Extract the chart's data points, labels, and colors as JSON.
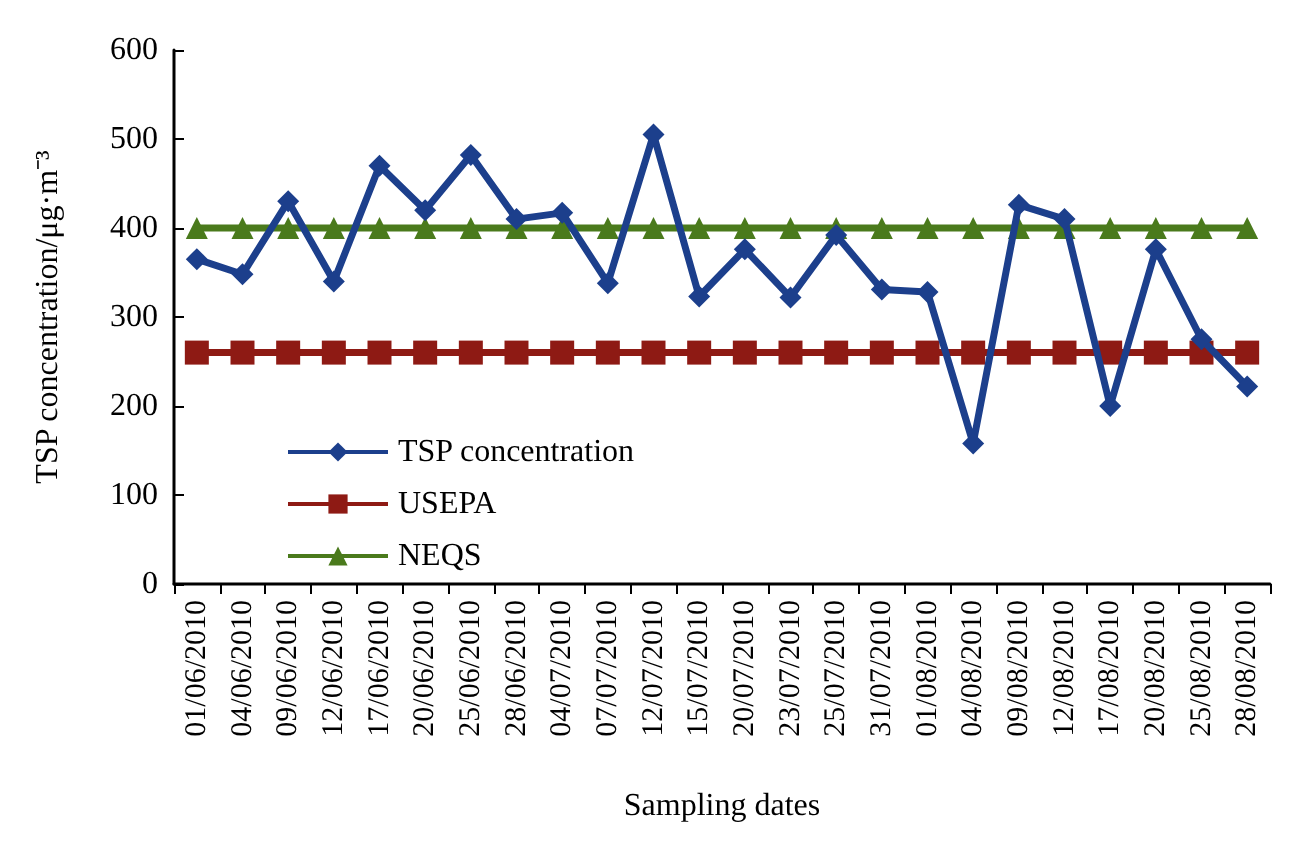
{
  "chart_data": {
    "type": "line",
    "xlabel": "Sampling dates",
    "ylabel": "TSP concentration/μg·m⁻³",
    "categories": [
      "01/06/2010",
      "04/06/2010",
      "09/06/2010",
      "12/06/2010",
      "17/06/2010",
      "20/06/2010",
      "25/06/2010",
      "28/06/2010",
      "04/07/2010",
      "07/07/2010",
      "12/07/2010",
      "15/07/2010",
      "20/07/2010",
      "23/07/2010",
      "25/07/2010",
      "31/07/2010",
      "01/08/2010",
      "04/08/2010",
      "09/08/2010",
      "12/08/2010",
      "17/08/2010",
      "20/08/2010",
      "25/08/2010",
      "28/08/2010"
    ],
    "series": [
      {
        "name": "TSP concentration",
        "color": "#1c3f8c",
        "marker": "diamond",
        "values": [
          365,
          348,
          430,
          340,
          470,
          420,
          482,
          410,
          417,
          338,
          505,
          323,
          376,
          322,
          392,
          331,
          328,
          158,
          426,
          410,
          200,
          376,
          275,
          222
        ]
      },
      {
        "name": "USEPA",
        "color": "#8e1a14",
        "marker": "square",
        "values": [
          260,
          260,
          260,
          260,
          260,
          260,
          260,
          260,
          260,
          260,
          260,
          260,
          260,
          260,
          260,
          260,
          260,
          260,
          260,
          260,
          260,
          260,
          260,
          260
        ]
      },
      {
        "name": "NEQS",
        "color": "#4a7a1c",
        "marker": "triangle",
        "values": [
          400,
          400,
          400,
          400,
          400,
          400,
          400,
          400,
          400,
          400,
          400,
          400,
          400,
          400,
          400,
          400,
          400,
          400,
          400,
          400,
          400,
          400,
          400,
          400
        ]
      }
    ],
    "ylim": [
      0,
      600
    ],
    "yticks": [
      0,
      100,
      200,
      300,
      400,
      500,
      600
    ],
    "grid": false,
    "legend": "bottom left",
    "line_style": "solid"
  }
}
